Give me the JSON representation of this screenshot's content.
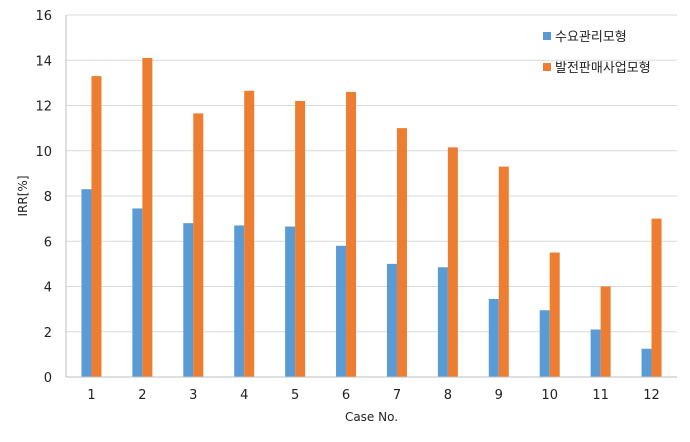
{
  "chart_data": {
    "type": "bar",
    "title": "",
    "xlabel": "Case No.",
    "ylabel": "IRR[%]",
    "categories": [
      "1",
      "2",
      "3",
      "4",
      "5",
      "6",
      "7",
      "8",
      "9",
      "10",
      "11",
      "12"
    ],
    "series": [
      {
        "name": "수요관리모형",
        "color": "#5b9bd5",
        "values": [
          8.3,
          7.45,
          6.8,
          6.7,
          6.65,
          5.8,
          5.0,
          4.85,
          3.45,
          2.95,
          2.1,
          1.25
        ]
      },
      {
        "name": "발전판매사업모형",
        "color": "#ed7d31",
        "values": [
          13.3,
          14.1,
          11.65,
          12.65,
          12.2,
          12.6,
          11.0,
          10.15,
          9.3,
          5.5,
          4.0,
          7.0
        ]
      }
    ],
    "ylim": [
      0,
      16
    ],
    "yticks": [
      0,
      2,
      4,
      6,
      8,
      10,
      12,
      14,
      16
    ],
    "grid": true,
    "legend_position": "top-right"
  }
}
